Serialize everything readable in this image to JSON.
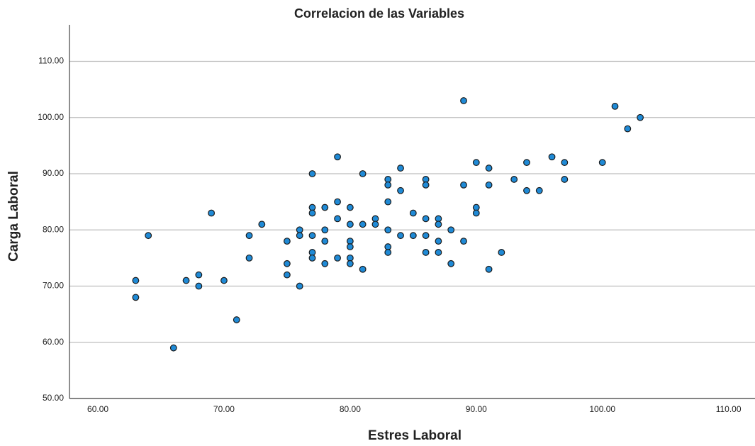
{
  "chart_data": {
    "type": "scatter",
    "title": "Correlacion de las Variables",
    "x_label": "Estres Laboral",
    "y_label": "Carga Laboral",
    "color": "#1f8ad6",
    "edge_color": "#1a1a1a",
    "grid": true,
    "xlim": [
      57.75,
      112.1
    ],
    "ylim": [
      50,
      116.5
    ],
    "xticks": [
      {
        "value": 60,
        "label": "60.00"
      },
      {
        "value": 70,
        "label": "70.00"
      },
      {
        "value": 80,
        "label": "80.00"
      },
      {
        "value": 90,
        "label": "90.00"
      },
      {
        "value": 100,
        "label": "100.00"
      },
      {
        "value": 110,
        "label": "110.00"
      }
    ],
    "yticks": [
      {
        "value": 50,
        "label": "50.00"
      },
      {
        "value": 60,
        "label": "60.00"
      },
      {
        "value": 70,
        "label": "70.00"
      },
      {
        "value": 80,
        "label": "80.00"
      },
      {
        "value": 90,
        "label": "90.00"
      },
      {
        "value": 100,
        "label": "100.00"
      },
      {
        "value": 110,
        "label": "110.00"
      }
    ],
    "x": [
      63,
      63,
      64,
      66,
      67,
      68,
      68,
      69,
      70,
      71,
      72,
      72,
      73,
      75,
      75,
      75,
      76,
      76,
      76,
      77,
      77,
      77,
      77,
      77,
      77,
      78,
      78,
      78,
      78,
      79,
      79,
      79,
      79,
      80,
      80,
      80,
      80,
      80,
      80,
      81,
      81,
      81,
      82,
      82,
      83,
      83,
      83,
      83,
      83,
      83,
      84,
      84,
      84,
      85,
      85,
      86,
      86,
      86,
      86,
      86,
      87,
      87,
      87,
      87,
      88,
      88,
      89,
      89,
      89,
      90,
      90,
      90,
      91,
      91,
      91,
      92,
      93,
      94,
      94,
      95,
      96,
      97,
      97,
      100,
      101,
      102,
      103
    ],
    "values": [
      71,
      68,
      79,
      59,
      71,
      72,
      70,
      83,
      71,
      64,
      79,
      75,
      81,
      78,
      74,
      72,
      80,
      79,
      70,
      90,
      84,
      83,
      79,
      76,
      75,
      84,
      80,
      78,
      74,
      93,
      85,
      82,
      75,
      84,
      81,
      78,
      77,
      75,
      74,
      90,
      81,
      73,
      82,
      81,
      89,
      88,
      85,
      80,
      77,
      76,
      91,
      87,
      79,
      83,
      79,
      89,
      88,
      82,
      79,
      76,
      82,
      81,
      78,
      76,
      80,
      74,
      103,
      88,
      78,
      92,
      84,
      83,
      91,
      88,
      73,
      76,
      89,
      92,
      87,
      87,
      93,
      92,
      89,
      92,
      102,
      98,
      100
    ]
  }
}
